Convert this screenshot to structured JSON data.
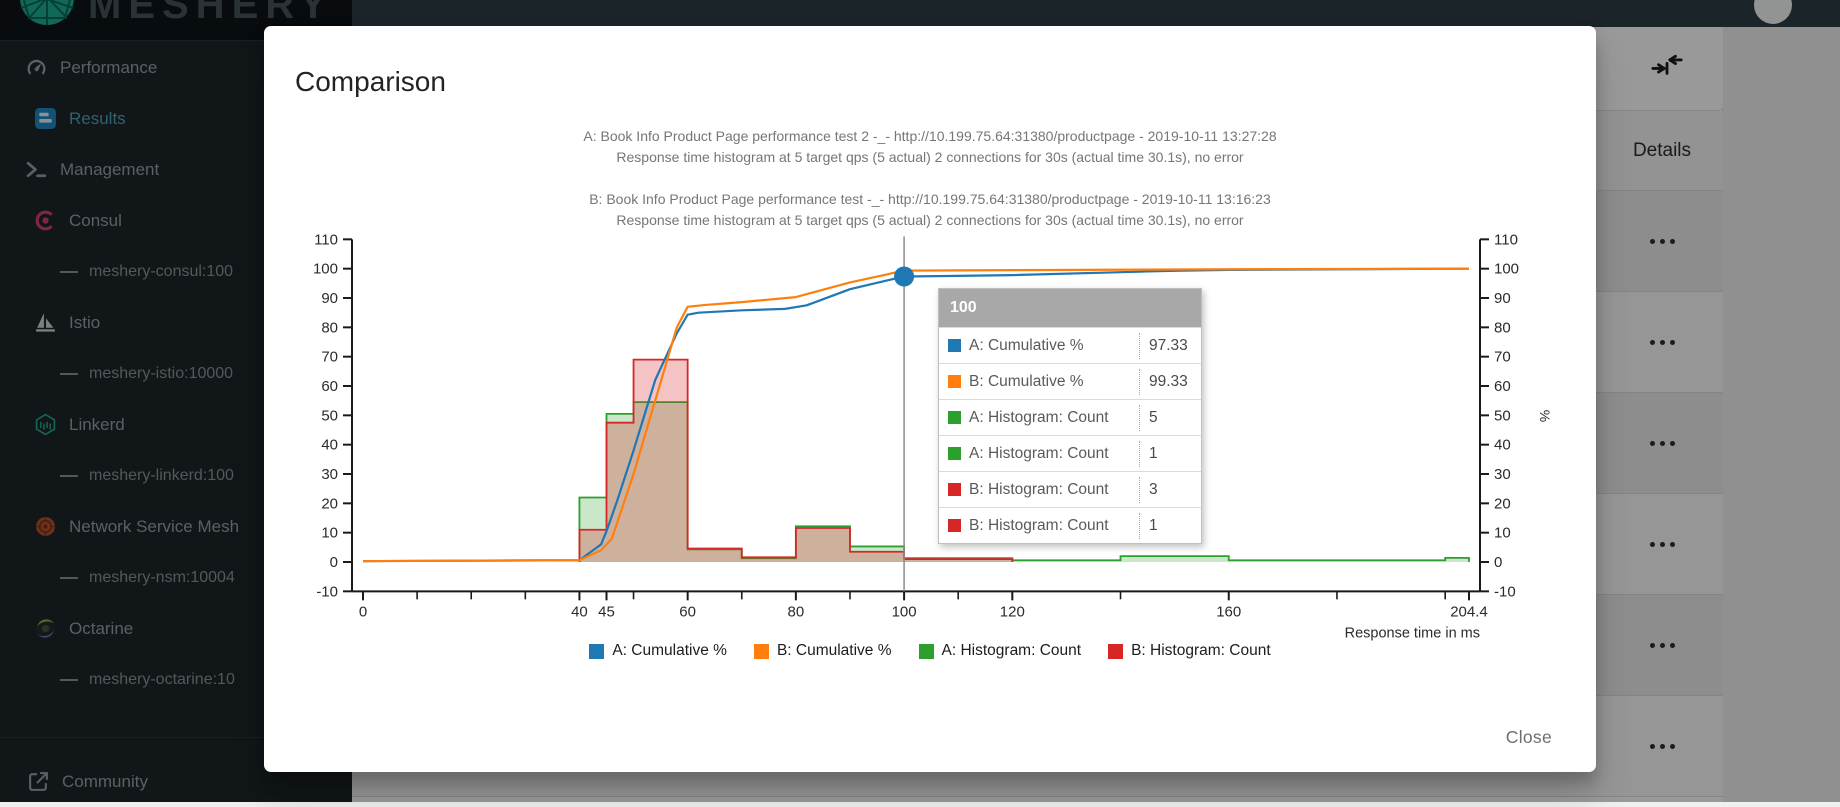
{
  "modal": {
    "title": "Comparison",
    "close_label": "Close",
    "chart_titles": {
      "a1": "A: Book Info Product Page performance test 2 -_- http://10.199.75.64:31380/productpage - 2019-10-11 13:27:28",
      "a2": "Response time histogram at 5 target qps (5 actual) 2 connections for 30s (actual time 30.1s), no error",
      "b1": "B: Book Info Product Page performance test -_- http://10.199.75.64:31380/productpage - 2019-10-11 13:16:23",
      "b2": "Response time histogram at 5 target qps (5 actual) 2 connections for 30s (actual time 30.1s), no error"
    }
  },
  "chart_data": {
    "type": "line",
    "subtype": "cumulative-percent-lines-with-histogram-bars",
    "xlabel": "Response time in ms",
    "ylabel_right": "%",
    "xlim": [
      0,
      204.4
    ],
    "ylim": [
      -10,
      110
    ],
    "y_ticks": [
      -10,
      0,
      10,
      20,
      30,
      40,
      50,
      60,
      70,
      80,
      90,
      100,
      110
    ],
    "x_ticks_labeled": [
      0,
      40,
      45,
      60,
      80,
      100,
      120,
      160,
      204.4
    ],
    "x_ticks_minor": [
      10,
      20,
      30,
      50,
      70,
      90,
      110,
      140,
      180,
      200
    ],
    "crosshair_x": 100,
    "marker": {
      "series": "A: Cumulative %",
      "x": 100,
      "y": 97.33
    },
    "series": [
      {
        "name": "A: Cumulative %",
        "type": "line",
        "color": "#1f77b4",
        "points": [
          [
            0,
            0.3
          ],
          [
            40,
            0.6
          ],
          [
            44,
            6
          ],
          [
            45,
            10.5
          ],
          [
            47,
            21
          ],
          [
            50,
            38
          ],
          [
            54,
            62
          ],
          [
            58,
            78
          ],
          [
            60,
            84.3
          ],
          [
            62,
            85
          ],
          [
            70,
            85.8
          ],
          [
            78,
            86.3
          ],
          [
            82,
            87.5
          ],
          [
            90,
            93
          ],
          [
            100,
            97.33
          ],
          [
            108,
            97.5
          ],
          [
            120,
            97.8
          ],
          [
            150,
            99.3
          ],
          [
            160,
            99.6
          ],
          [
            204.4,
            100
          ]
        ]
      },
      {
        "name": "B: Cumulative %",
        "type": "line",
        "color": "#ff7f0e",
        "points": [
          [
            0,
            0.3
          ],
          [
            40,
            0.6
          ],
          [
            44,
            4
          ],
          [
            46,
            8
          ],
          [
            50,
            30
          ],
          [
            54,
            55
          ],
          [
            58,
            80
          ],
          [
            60,
            87
          ],
          [
            63,
            87.6
          ],
          [
            70,
            88.6
          ],
          [
            80,
            90.3
          ],
          [
            90,
            95.3
          ],
          [
            100,
            99.33
          ],
          [
            120,
            99.5
          ],
          [
            160,
            99.8
          ],
          [
            204.4,
            100
          ]
        ]
      },
      {
        "name": "A: Histogram: Count",
        "type": "histogram",
        "color": "#2ca02c",
        "buckets": [
          [
            40,
            45,
            22
          ],
          [
            45,
            50,
            50.5
          ],
          [
            50,
            60,
            54.5
          ],
          [
            60,
            70,
            4.3
          ],
          [
            70,
            80,
            1.3
          ],
          [
            80,
            90,
            12.2
          ],
          [
            90,
            100,
            5.3
          ],
          [
            100,
            120,
            1.3
          ],
          [
            120,
            140,
            0.6
          ],
          [
            140,
            160,
            2
          ],
          [
            160,
            200,
            0.6
          ],
          [
            200,
            204.4,
            1.4
          ]
        ]
      },
      {
        "name": "B: Histogram: Count",
        "type": "histogram",
        "color": "#d62728",
        "buckets": [
          [
            40,
            45,
            11
          ],
          [
            45,
            50,
            47.5
          ],
          [
            50,
            60,
            69
          ],
          [
            60,
            70,
            4.6
          ],
          [
            70,
            80,
            1.6
          ],
          [
            80,
            90,
            11.6
          ],
          [
            90,
            100,
            3.5
          ],
          [
            100,
            120,
            1
          ]
        ]
      }
    ],
    "legend_position": "bottom-center",
    "tooltip": {
      "header": "100",
      "rows": [
        {
          "color": "#1f77b4",
          "label": "A: Cumulative %",
          "value": "97.33"
        },
        {
          "color": "#ff7f0e",
          "label": "B: Cumulative %",
          "value": "99.33"
        },
        {
          "color": "#2ca02c",
          "label": "A: Histogram: Count",
          "value": "5"
        },
        {
          "color": "#2ca02c",
          "label": "A: Histogram: Count",
          "value": "1"
        },
        {
          "color": "#d62728",
          "label": "B: Histogram: Count",
          "value": "3"
        },
        {
          "color": "#d62728",
          "label": "B: Histogram: Count",
          "value": "1"
        }
      ]
    }
  },
  "sidebar": {
    "brand": "MESHERY",
    "items": [
      {
        "label": "Performance",
        "icon": "gauge-icon",
        "type": "main"
      },
      {
        "label": "Results",
        "icon": "results-icon",
        "type": "main-active",
        "active": true
      },
      {
        "label": "Management",
        "icon": "terminal-icon",
        "type": "main"
      },
      {
        "label": "Consul",
        "icon": "consul-icon",
        "type": "mesh"
      },
      {
        "label": "meshery-consul:100",
        "type": "sub"
      },
      {
        "label": "Istio",
        "icon": "istio-icon",
        "type": "mesh"
      },
      {
        "label": "meshery-istio:10000",
        "type": "sub"
      },
      {
        "label": "Linkerd",
        "icon": "linkerd-icon",
        "type": "mesh"
      },
      {
        "label": "meshery-linkerd:100",
        "type": "sub"
      },
      {
        "label": "Network Service Mesh",
        "icon": "nsm-icon",
        "type": "mesh"
      },
      {
        "label": "meshery-nsm:10004",
        "type": "sub"
      },
      {
        "label": "Octarine",
        "icon": "octarine-icon",
        "type": "mesh"
      },
      {
        "label": "meshery-octarine:10",
        "type": "sub"
      }
    ],
    "footer": {
      "label": "Community",
      "icon": "external-link-icon"
    }
  },
  "background_table": {
    "details_header": "Details",
    "toolbar_icon": "collapse-columns-icon",
    "rows": [
      {
        "icon": "more-options-icon"
      },
      {
        "icon": "more-options-icon"
      },
      {
        "icon": "more-options-icon"
      },
      {
        "icon": "more-options-icon"
      },
      {
        "icon": "more-options-icon"
      },
      {
        "icon": "more-options-icon"
      }
    ]
  }
}
